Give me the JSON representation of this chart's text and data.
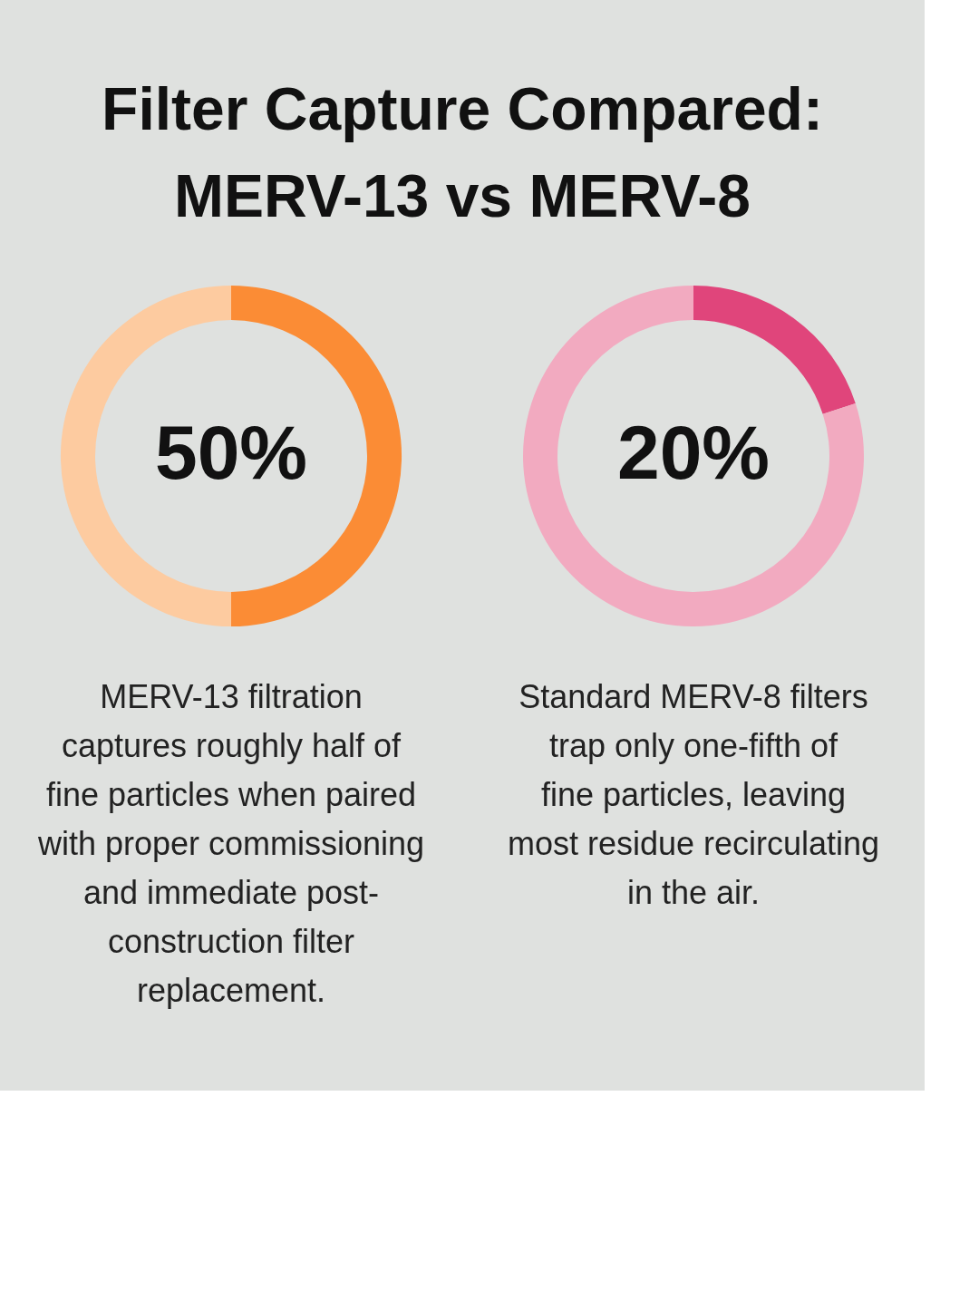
{
  "chart_data": [
    {
      "type": "donut",
      "title": "Filter Capture Compared: MERV-13 vs MERV-8",
      "categories": [
        null,
        null
      ],
      "values": [
        50,
        50
      ],
      "colors": [
        "#fb8c35",
        "#fdcba0"
      ],
      "value_labels": [
        "50%",
        null
      ],
      "legend": false,
      "annotations": [
        "MERV-13 filtration captures roughly half of fine particles when paired with proper commissioning and immediate post-construction filter replacement."
      ]
    },
    {
      "type": "donut",
      "categories": [
        null,
        null
      ],
      "values": [
        20,
        80
      ],
      "colors": [
        "#e0457b",
        "#f2aac0"
      ],
      "value_labels": [
        "20%",
        null
      ],
      "legend": false,
      "annotations": [
        "Standard MERV-8 filters trap only one-fifth of fine particles, leaving most residue recirculating in the air."
      ]
    }
  ]
}
